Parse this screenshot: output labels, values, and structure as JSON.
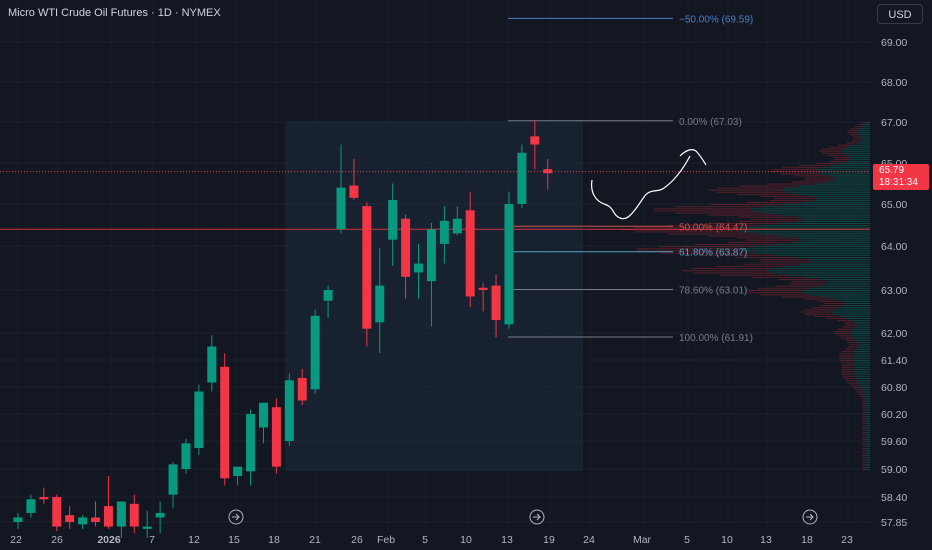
{
  "header": {
    "title": "Micro WTI Crude Oil Futures · 1D · NYMEX",
    "currency": "USD"
  },
  "price_tag": {
    "price": "65.79",
    "countdown": "18:31:34"
  },
  "colors": {
    "background": "#131722",
    "up": "#089981",
    "down": "#f23645",
    "axis_text": "#b2b5be",
    "fib_line": "#787b86",
    "fib_neg": "#2962ff"
  },
  "fib_levels": [
    {
      "label": "−50.00% (69.59)",
      "price": 69.59,
      "color": "#4a7fc1"
    },
    {
      "label": "0.00% (67.03)",
      "price": 67.03,
      "color": "#787b86"
    },
    {
      "label": "50.00% (64.47)",
      "price": 64.47,
      "color": "#d4504f"
    },
    {
      "label": "61.80% (63.87)",
      "price": 63.87,
      "color": "#4fa3c8"
    },
    {
      "label": "78.60% (63.01)",
      "price": 63.01,
      "color": "#787b86"
    },
    {
      "label": "100.00% (61.91)",
      "price": 61.91,
      "color": "#787b86"
    }
  ],
  "chart_data": {
    "type": "candlestick",
    "title": "Micro WTI Crude Oil Futures · 1D · NYMEX",
    "currency": "USD",
    "last_price": 65.79,
    "y_ticks": [
      "69.00",
      "68.00",
      "67.00",
      "66.00",
      "65.00",
      "64.00",
      "63.00",
      "62.00",
      "61.40",
      "60.80",
      "60.20",
      "59.60",
      "59.00",
      "58.40",
      "57.85"
    ],
    "x_ticks": [
      "22",
      "26",
      "2026",
      "7",
      "12",
      "15",
      "18",
      "21",
      "26",
      "Feb",
      "5",
      "10",
      "13",
      "19",
      "24",
      "Mar",
      "5",
      "10",
      "13",
      "18",
      "23"
    ],
    "candles": [
      {
        "o": 57.85,
        "h": 58.05,
        "l": 57.7,
        "c": 57.95
      },
      {
        "o": 58.05,
        "h": 58.45,
        "l": 57.95,
        "c": 58.35
      },
      {
        "o": 58.4,
        "h": 58.6,
        "l": 58.25,
        "c": 58.35
      },
      {
        "o": 58.4,
        "h": 58.45,
        "l": 57.65,
        "c": 57.75
      },
      {
        "o": 58.0,
        "h": 58.2,
        "l": 57.7,
        "c": 57.85
      },
      {
        "o": 57.8,
        "h": 58.0,
        "l": 57.7,
        "c": 57.95
      },
      {
        "o": 57.95,
        "h": 58.3,
        "l": 57.75,
        "c": 57.85
      },
      {
        "o": 58.2,
        "h": 58.85,
        "l": 57.7,
        "c": 57.75
      },
      {
        "o": 57.75,
        "h": 58.3,
        "l": 57.5,
        "c": 58.3
      },
      {
        "o": 58.25,
        "h": 58.45,
        "l": 57.6,
        "c": 57.75
      },
      {
        "o": 57.7,
        "h": 58.1,
        "l": 57.5,
        "c": 57.75
      },
      {
        "o": 57.95,
        "h": 58.3,
        "l": 57.6,
        "c": 58.05
      },
      {
        "o": 58.45,
        "h": 59.15,
        "l": 58.15,
        "c": 59.1
      },
      {
        "o": 59.0,
        "h": 59.65,
        "l": 58.9,
        "c": 59.55
      },
      {
        "o": 59.45,
        "h": 60.85,
        "l": 59.3,
        "c": 60.7
      },
      {
        "o": 60.9,
        "h": 61.95,
        "l": 60.7,
        "c": 61.7
      },
      {
        "o": 61.25,
        "h": 61.55,
        "l": 58.65,
        "c": 58.8
      },
      {
        "o": 58.85,
        "h": 59.0,
        "l": 58.65,
        "c": 59.05
      },
      {
        "o": 58.95,
        "h": 60.3,
        "l": 58.65,
        "c": 60.2
      },
      {
        "o": 59.9,
        "h": 60.45,
        "l": 59.55,
        "c": 60.45
      },
      {
        "o": 60.35,
        "h": 60.55,
        "l": 58.9,
        "c": 59.05
      },
      {
        "o": 59.6,
        "h": 61.1,
        "l": 59.5,
        "c": 60.95
      },
      {
        "o": 61.0,
        "h": 61.2,
        "l": 60.4,
        "c": 60.5
      },
      {
        "o": 60.75,
        "h": 62.55,
        "l": 60.65,
        "c": 62.4
      },
      {
        "o": 62.75,
        "h": 63.1,
        "l": 62.35,
        "c": 63.0
      },
      {
        "o": 64.4,
        "h": 66.45,
        "l": 64.3,
        "c": 65.4
      },
      {
        "o": 65.45,
        "h": 66.1,
        "l": 65.1,
        "c": 65.15
      },
      {
        "o": 64.95,
        "h": 65.05,
        "l": 61.7,
        "c": 62.1
      },
      {
        "o": 62.25,
        "h": 63.95,
        "l": 61.55,
        "c": 63.1
      },
      {
        "o": 64.15,
        "h": 65.5,
        "l": 63.55,
        "c": 65.1
      },
      {
        "o": 64.65,
        "h": 64.75,
        "l": 62.8,
        "c": 63.3
      },
      {
        "o": 63.4,
        "h": 64.05,
        "l": 62.8,
        "c": 63.6
      },
      {
        "o": 63.2,
        "h": 64.55,
        "l": 62.15,
        "c": 64.4
      },
      {
        "o": 64.05,
        "h": 64.95,
        "l": 63.6,
        "c": 64.6
      },
      {
        "o": 64.3,
        "h": 64.95,
        "l": 64.25,
        "c": 64.65
      },
      {
        "o": 64.85,
        "h": 65.3,
        "l": 62.6,
        "c": 62.85
      },
      {
        "o": 63.05,
        "h": 63.15,
        "l": 62.5,
        "c": 63.0
      },
      {
        "o": 63.1,
        "h": 63.35,
        "l": 61.9,
        "c": 62.3
      },
      {
        "o": 62.2,
        "h": 65.3,
        "l": 62.1,
        "c": 65.0
      },
      {
        "o": 65.0,
        "h": 66.45,
        "l": 64.9,
        "c": 66.25
      },
      {
        "o": 66.65,
        "h": 67.05,
        "l": 65.85,
        "c": 66.45
      },
      {
        "o": 65.85,
        "h": 66.1,
        "l": 65.35,
        "c": 65.75
      }
    ]
  }
}
